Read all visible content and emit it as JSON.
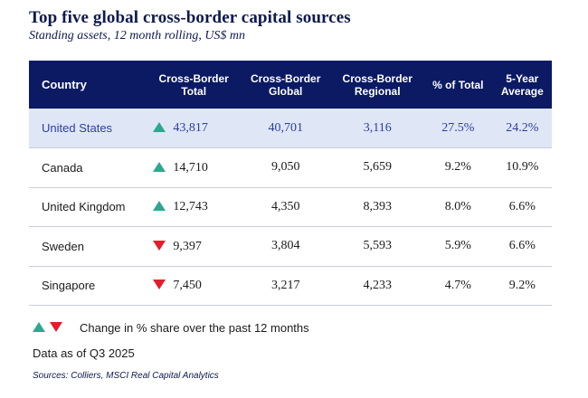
{
  "title": "Top five global cross-border capital sources",
  "subtitle": "Standing assets, 12 month rolling, US$ mn",
  "columns": {
    "country": "Country",
    "total": [
      "Cross-Border",
      "Total"
    ],
    "global": [
      "Cross-Border",
      "Global"
    ],
    "regional": [
      "Cross-Border",
      "Regional"
    ],
    "pct": "% of Total",
    "avg": [
      "5-Year",
      "Average"
    ]
  },
  "rows": [
    {
      "country": "United States",
      "direction": "up",
      "total": "43,817",
      "global": "40,701",
      "regional": "3,116",
      "pct": "27.5%",
      "avg": "24.2%"
    },
    {
      "country": "Canada",
      "direction": "up",
      "total": "14,710",
      "global": "9,050",
      "regional": "5,659",
      "pct": "9.2%",
      "avg": "10.9%"
    },
    {
      "country": "United Kingdom",
      "direction": "up",
      "total": "12,743",
      "global": "4,350",
      "regional": "8,393",
      "pct": "8.0%",
      "avg": "6.6%"
    },
    {
      "country": "Sweden",
      "direction": "down",
      "total": "9,397",
      "global": "3,804",
      "regional": "5,593",
      "pct": "5.9%",
      "avg": "6.6%"
    },
    {
      "country": "Singapore",
      "direction": "down",
      "total": "7,450",
      "global": "3,217",
      "regional": "4,233",
      "pct": "4.7%",
      "avg": "9.2%"
    }
  ],
  "legend_text": "Change in % share over the past 12 months",
  "data_as_of": "Data as of Q3 2025",
  "sources": "Sources: Colliers, MSCI Real Capital Analytics",
  "colors": {
    "header_bg": "#0b1a63",
    "highlight_bg": "#dfe6f6",
    "up": "#2ba88e",
    "down": "#e41c2c",
    "title": "#0d1a4f"
  }
}
